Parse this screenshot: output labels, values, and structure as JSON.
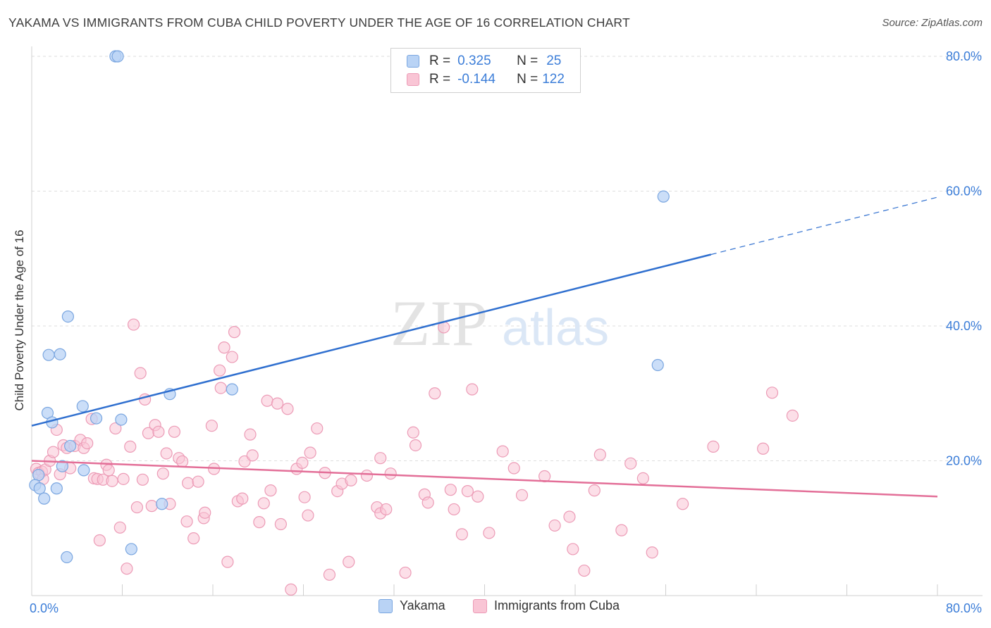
{
  "header": {
    "title": "YAKAMA VS IMMIGRANTS FROM CUBA CHILD POVERTY UNDER THE AGE OF 16 CORRELATION CHART",
    "source": "Source: ZipAtlas.com"
  },
  "watermark": {
    "zip": "ZIP",
    "atlas": "atlas"
  },
  "legend": {
    "rows": [
      {
        "r_label": "R =",
        "r_value": "0.325",
        "n_label": "N =",
        "n_value": "25"
      },
      {
        "r_label": "R =",
        "r_value": "-0.144",
        "n_label": "N =",
        "n_value": "122"
      }
    ]
  },
  "bottom_legend": {
    "yakama": "Yakama",
    "cuba": "Immigrants from Cuba"
  },
  "colors": {
    "yakama_fill": "#b9d3f5",
    "yakama_stroke": "#7aa6e0",
    "yakama_line": "#2f6fcf",
    "cuba_fill": "#f9c5d5",
    "cuba_stroke": "#ec9bb6",
    "cuba_line": "#e36f98",
    "tick_label": "#3b7dd8",
    "grid": "#dedede"
  },
  "chart_data": {
    "type": "scatter",
    "ylabel": "Child Poverty Under the Age of 16",
    "xlabel": "",
    "xlim": [
      0,
      80
    ],
    "ylim": [
      0,
      80
    ],
    "x_tick_labels": [
      {
        "value": 0,
        "label": "0.0%"
      },
      {
        "value": 80,
        "label": "80.0%"
      }
    ],
    "y_tick_labels": [
      {
        "value": 20,
        "label": "20.0%"
      },
      {
        "value": 40,
        "label": "40.0%"
      },
      {
        "value": 60,
        "label": "60.0%"
      },
      {
        "value": 80,
        "label": "80.0%"
      }
    ],
    "grid": true,
    "legend_position": "top-center",
    "series": [
      {
        "name": "Yakama",
        "points": [
          [
            7.4,
            80.0
          ],
          [
            7.6,
            80.0
          ],
          [
            55.8,
            59.2
          ],
          [
            3.2,
            41.4
          ],
          [
            1.5,
            35.7
          ],
          [
            2.5,
            35.8
          ],
          [
            55.3,
            34.2
          ],
          [
            17.7,
            30.6
          ],
          [
            12.2,
            29.9
          ],
          [
            1.4,
            27.1
          ],
          [
            4.5,
            28.1
          ],
          [
            5.7,
            26.3
          ],
          [
            7.9,
            26.1
          ],
          [
            1.8,
            25.7
          ],
          [
            3.4,
            22.2
          ],
          [
            2.7,
            19.2
          ],
          [
            4.6,
            18.6
          ],
          [
            0.6,
            17.9
          ],
          [
            0.3,
            16.4
          ],
          [
            0.7,
            15.9
          ],
          [
            2.2,
            15.9
          ],
          [
            1.1,
            14.4
          ],
          [
            11.5,
            13.6
          ],
          [
            8.8,
            6.9
          ],
          [
            3.1,
            5.7
          ]
        ]
      },
      {
        "name": "Immigrants from Cuba",
        "points": [
          [
            0.4,
            18.8
          ],
          [
            0.6,
            18.2
          ],
          [
            0.9,
            18.4
          ],
          [
            1.0,
            17.3
          ],
          [
            1.2,
            18.7
          ],
          [
            1.6,
            20.0
          ],
          [
            1.9,
            21.3
          ],
          [
            2.2,
            24.6
          ],
          [
            2.5,
            18.0
          ],
          [
            2.8,
            22.3
          ],
          [
            3.1,
            21.9
          ],
          [
            3.4,
            18.9
          ],
          [
            3.8,
            22.2
          ],
          [
            4.3,
            23.1
          ],
          [
            4.6,
            21.9
          ],
          [
            4.9,
            22.6
          ],
          [
            5.3,
            26.2
          ],
          [
            5.5,
            17.4
          ],
          [
            5.8,
            17.3
          ],
          [
            6.0,
            8.2
          ],
          [
            6.3,
            17.2
          ],
          [
            6.6,
            19.4
          ],
          [
            6.8,
            18.6
          ],
          [
            7.1,
            17.0
          ],
          [
            7.4,
            24.8
          ],
          [
            7.8,
            10.1
          ],
          [
            8.1,
            17.3
          ],
          [
            8.4,
            4.0
          ],
          [
            8.7,
            22.1
          ],
          [
            9.0,
            40.2
          ],
          [
            9.3,
            13.1
          ],
          [
            9.6,
            33.0
          ],
          [
            9.8,
            17.2
          ],
          [
            10.0,
            29.1
          ],
          [
            10.3,
            24.1
          ],
          [
            10.6,
            13.3
          ],
          [
            10.9,
            25.3
          ],
          [
            11.2,
            24.3
          ],
          [
            11.6,
            18.1
          ],
          [
            11.9,
            21.1
          ],
          [
            12.2,
            13.6
          ],
          [
            12.6,
            24.3
          ],
          [
            13.0,
            20.4
          ],
          [
            13.3,
            19.9
          ],
          [
            13.7,
            11.0
          ],
          [
            13.8,
            16.7
          ],
          [
            14.3,
            8.5
          ],
          [
            14.7,
            16.9
          ],
          [
            15.2,
            11.5
          ],
          [
            15.3,
            12.3
          ],
          [
            15.9,
            25.2
          ],
          [
            16.1,
            18.8
          ],
          [
            16.6,
            33.4
          ],
          [
            16.7,
            30.8
          ],
          [
            17.0,
            36.8
          ],
          [
            17.3,
            5.0
          ],
          [
            17.7,
            35.4
          ],
          [
            17.9,
            39.1
          ],
          [
            18.2,
            14.0
          ],
          [
            18.6,
            14.4
          ],
          [
            18.8,
            19.9
          ],
          [
            19.3,
            23.9
          ],
          [
            19.5,
            20.8
          ],
          [
            20.1,
            10.9
          ],
          [
            20.5,
            13.7
          ],
          [
            20.8,
            28.9
          ],
          [
            21.1,
            15.6
          ],
          [
            21.7,
            28.5
          ],
          [
            22.0,
            10.6
          ],
          [
            22.6,
            27.7
          ],
          [
            22.9,
            0.9
          ],
          [
            23.4,
            18.8
          ],
          [
            23.9,
            19.7
          ],
          [
            24.1,
            14.6
          ],
          [
            24.4,
            11.9
          ],
          [
            24.6,
            21.2
          ],
          [
            25.2,
            24.8
          ],
          [
            25.9,
            18.2
          ],
          [
            26.3,
            3.1
          ],
          [
            27.0,
            15.5
          ],
          [
            27.4,
            16.6
          ],
          [
            28.0,
            5.0
          ],
          [
            28.2,
            17.1
          ],
          [
            29.6,
            17.8
          ],
          [
            30.5,
            13.1
          ],
          [
            30.8,
            12.2
          ],
          [
            30.8,
            20.4
          ],
          [
            31.3,
            12.8
          ],
          [
            31.7,
            18.1
          ],
          [
            33.0,
            3.4
          ],
          [
            33.7,
            24.2
          ],
          [
            33.9,
            22.3
          ],
          [
            34.7,
            15.0
          ],
          [
            35.0,
            13.8
          ],
          [
            35.6,
            30.0
          ],
          [
            36.4,
            39.8
          ],
          [
            37.0,
            15.7
          ],
          [
            37.3,
            12.8
          ],
          [
            38.0,
            9.1
          ],
          [
            38.5,
            15.5
          ],
          [
            38.9,
            30.6
          ],
          [
            39.4,
            14.7
          ],
          [
            40.4,
            9.3
          ],
          [
            41.6,
            21.4
          ],
          [
            42.6,
            18.9
          ],
          [
            43.3,
            14.9
          ],
          [
            45.3,
            17.7
          ],
          [
            46.2,
            10.4
          ],
          [
            47.5,
            11.7
          ],
          [
            47.8,
            6.9
          ],
          [
            48.8,
            3.7
          ],
          [
            49.7,
            15.6
          ],
          [
            50.2,
            20.9
          ],
          [
            52.1,
            9.7
          ],
          [
            52.9,
            19.6
          ],
          [
            54.0,
            17.4
          ],
          [
            54.8,
            6.4
          ],
          [
            57.5,
            13.6
          ],
          [
            60.2,
            22.1
          ],
          [
            64.6,
            21.8
          ],
          [
            65.4,
            30.1
          ],
          [
            67.2,
            26.7
          ]
        ]
      }
    ],
    "trend_lines": [
      {
        "series": "Yakama",
        "solid_from": [
          0,
          25.2
        ],
        "solid_to": [
          60.0,
          50.6
        ],
        "dashed_to": [
          80.0,
          59.1
        ]
      },
      {
        "series": "Immigrants from Cuba",
        "from": [
          0,
          20.0
        ],
        "to": [
          80.0,
          14.7
        ]
      }
    ]
  }
}
